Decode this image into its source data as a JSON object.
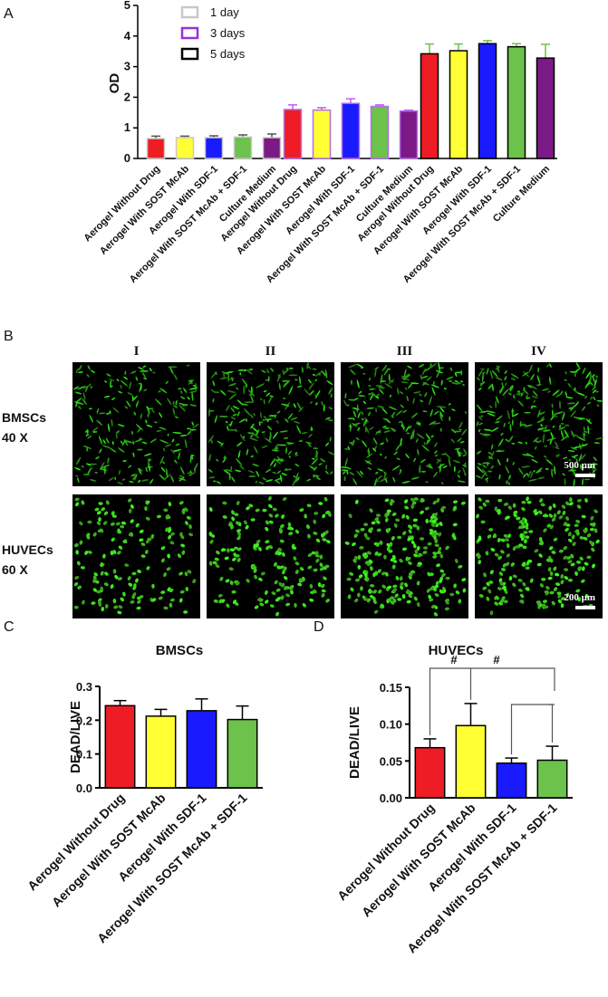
{
  "figure": {
    "panel_labels": {
      "a": "A",
      "b": "B",
      "c": "C",
      "d": "D"
    },
    "micrograph": {
      "columns": [
        "I",
        "II",
        "III",
        "IV"
      ],
      "rows": [
        {
          "line1": "BMSCs",
          "line2": "40 X",
          "scale": "500 μm",
          "cell": "spindle",
          "density": [
            0.35,
            0.45,
            0.55,
            0.6
          ]
        },
        {
          "line1": "HUVECs",
          "line2": "60 X",
          "scale": "200 μm",
          "cell": "round",
          "density": [
            0.45,
            0.55,
            0.85,
            0.8
          ]
        }
      ]
    }
  },
  "chart_data": [
    {
      "type": "bar",
      "panel": "A",
      "ylabel": "OD",
      "ylim": [
        0,
        5
      ],
      "yticks": [
        0,
        1,
        2,
        3,
        4,
        5
      ],
      "legend": [
        "1 day",
        "3 days",
        "5 days"
      ],
      "legend_colors": [
        "#c8c8c8",
        "#9b30d9",
        "#000000"
      ],
      "categories": [
        "Aerogel Without Drug",
        "Aerogel With SOST McAb",
        "Aerogel With SDF-1",
        "Aerogel With SOST McAb + SDF-1",
        "Culture Medium"
      ],
      "bar_colors": [
        "#ee1c24",
        "#ffff33",
        "#1a1aff",
        "#6cc24a",
        "#7b1a86"
      ],
      "series": [
        {
          "name": "1 day",
          "values": [
            0.65,
            0.68,
            0.68,
            0.7,
            0.68
          ],
          "errors": [
            0.08,
            0.05,
            0.06,
            0.07,
            0.12
          ]
        },
        {
          "name": "3 days",
          "values": [
            1.6,
            1.58,
            1.8,
            1.7,
            1.55
          ],
          "errors": [
            0.15,
            0.08,
            0.15,
            0.05,
            0.03
          ]
        },
        {
          "name": "5 days",
          "values": [
            3.42,
            3.52,
            3.75,
            3.65,
            3.28
          ],
          "errors": [
            0.32,
            0.22,
            0.1,
            0.1,
            0.45
          ]
        }
      ]
    },
    {
      "type": "bar",
      "panel": "C",
      "title": "BMSCs",
      "ylabel": "DEAD/LIVE",
      "ylim": [
        0,
        0.3
      ],
      "yticks": [
        "0.0",
        "0.1",
        "0.2",
        "0.3"
      ],
      "categories": [
        "Aerogel Without Drug",
        "Aerogel With SOST McAb",
        "Aerogel With SDF-1",
        "Aerogel With SOST McAb + SDF-1"
      ],
      "bar_colors": [
        "#ee1c24",
        "#ffff33",
        "#1a1aff",
        "#6cc24a"
      ],
      "values": [
        0.243,
        0.212,
        0.228,
        0.202
      ],
      "errors": [
        0.015,
        0.02,
        0.035,
        0.04
      ]
    },
    {
      "type": "bar",
      "panel": "D",
      "title": "HUVECs",
      "ylabel": "DEAD/LIVE",
      "ylim": [
        0,
        0.15
      ],
      "yticks": [
        "0.00",
        "0.05",
        "0.10",
        "0.15"
      ],
      "categories": [
        "Aerogel Without Drug",
        "Aerogel With SOST McAb",
        "Aerogel With SDF-1",
        "Aerogel With SOST McAb + SDF-1"
      ],
      "bar_colors": [
        "#ee1c24",
        "#ffff33",
        "#1a1aff",
        "#6cc24a"
      ],
      "values": [
        0.068,
        0.098,
        0.047,
        0.051
      ],
      "errors": [
        0.012,
        0.03,
        0.007,
        0.019
      ],
      "significance": [
        {
          "symbol": "#",
          "from": 0,
          "to": [
            2,
            3
          ]
        },
        {
          "symbol": "#",
          "from": 1,
          "to": [
            2,
            3
          ]
        }
      ]
    }
  ]
}
